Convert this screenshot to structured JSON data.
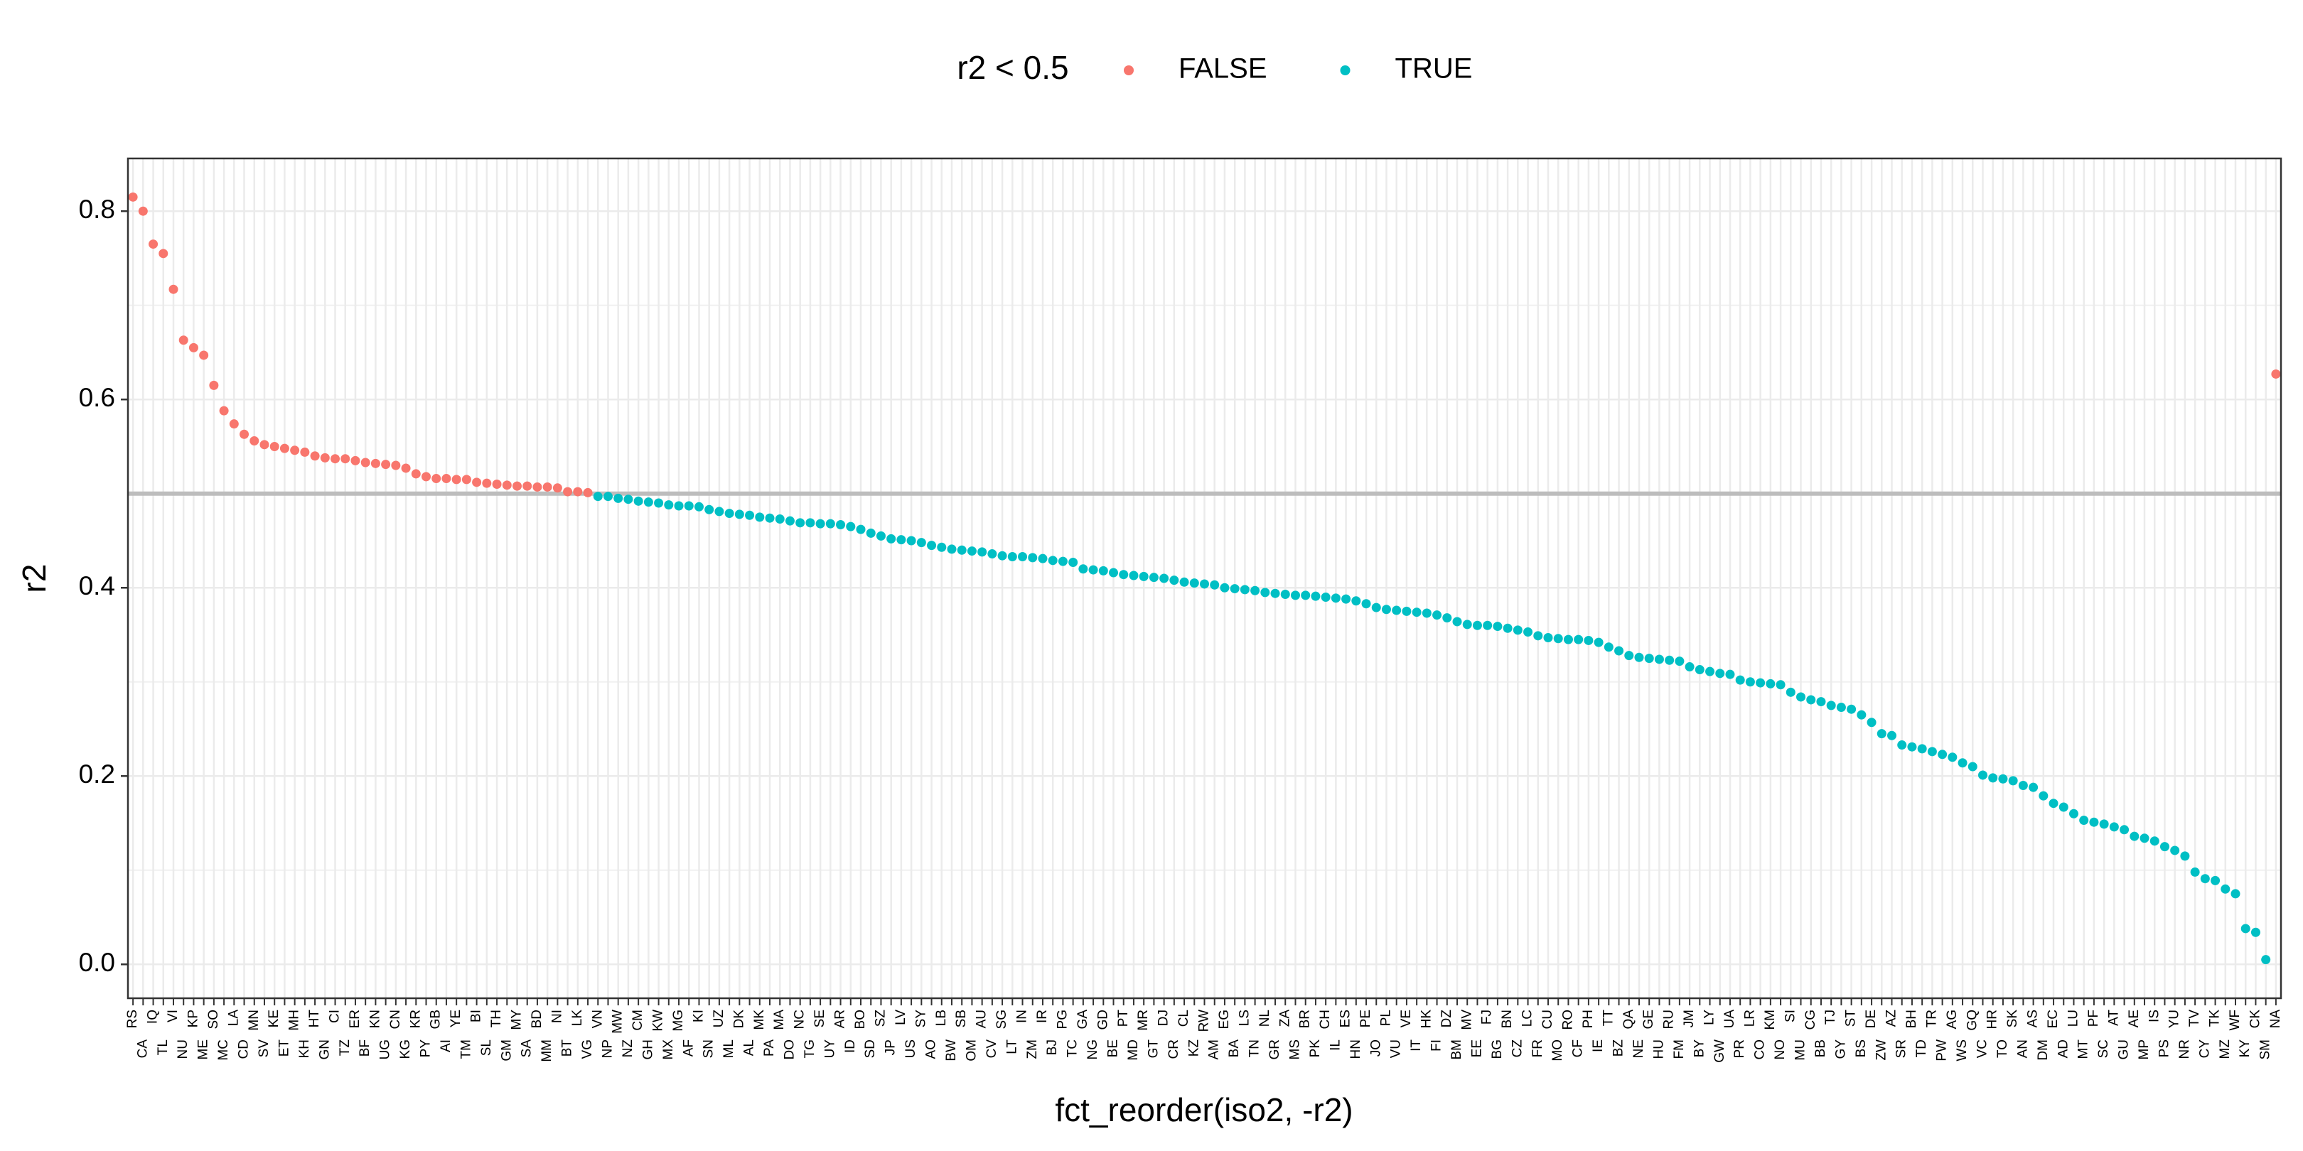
{
  "chart_data": {
    "type": "scatter",
    "x_label": "fct_reorder(iso2, -r2)",
    "y_label": "r2",
    "legend_title": "r2 < 0.5",
    "legend_position": "top",
    "grid": true,
    "reference_line": 0.5,
    "categories": [
      "RS",
      "CA",
      "IQ",
      "TL",
      "VI",
      "NU",
      "KP",
      "ME",
      "SO",
      "MC",
      "LA",
      "CD",
      "MN",
      "SV",
      "KE",
      "ET",
      "MH",
      "KH",
      "HT",
      "GN",
      "CI",
      "TZ",
      "ER",
      "BF",
      "KN",
      "UG",
      "CN",
      "KG",
      "KR",
      "PY",
      "GB",
      "AI",
      "YE",
      "TM",
      "BI",
      "SL",
      "TH",
      "GM",
      "MY",
      "SA",
      "BD",
      "MM",
      "NI",
      "BT",
      "LK",
      "VG",
      "VN",
      "NP",
      "MW",
      "NZ",
      "CM",
      "GH",
      "KW",
      "MX",
      "MG",
      "AF",
      "KI",
      "SN",
      "UZ",
      "ML",
      "DK",
      "AL",
      "MK",
      "PA",
      "MA",
      "DO",
      "NC",
      "TG",
      "SE",
      "UY",
      "AR",
      "ID",
      "BO",
      "SD",
      "SZ",
      "JP",
      "LV",
      "US",
      "SY",
      "AO",
      "LB",
      "BW",
      "SB",
      "OM",
      "AU",
      "CV",
      "SG",
      "LT",
      "IN",
      "ZM",
      "IR",
      "BJ",
      "PG",
      "TC",
      "GA",
      "NG",
      "GD",
      "BE",
      "PT",
      "MD",
      "MR",
      "GT",
      "DJ",
      "CR",
      "CL",
      "KZ",
      "RW",
      "AM",
      "EG",
      "BA",
      "LS",
      "TN",
      "NL",
      "GR",
      "ZA",
      "MS",
      "BR",
      "PK",
      "CH",
      "IL",
      "ES",
      "HN",
      "PE",
      "JO",
      "PL",
      "VU",
      "VE",
      "IT",
      "HK",
      "FI",
      "DZ",
      "BM",
      "MV",
      "EE",
      "FJ",
      "BG",
      "BN",
      "CZ",
      "LC",
      "FR",
      "CU",
      "MO",
      "RO",
      "CF",
      "PH",
      "IE",
      "TT",
      "BZ",
      "QA",
      "NE",
      "GE",
      "HU",
      "RU",
      "FM",
      "JM",
      "BY",
      "LY",
      "GW",
      "UA",
      "PR",
      "LR",
      "CO",
      "KM",
      "NO",
      "SI",
      "MU",
      "CG",
      "BB",
      "TJ",
      "GY",
      "ST",
      "BS",
      "DE",
      "ZW",
      "AZ",
      "SR",
      "BH",
      "TD",
      "TR",
      "PW",
      "AG",
      "WS",
      "GQ",
      "VC",
      "HR",
      "TO",
      "SK",
      "AN",
      "AS",
      "DM",
      "EC",
      "AD",
      "LU",
      "MT",
      "PF",
      "SC",
      "AT",
      "GU",
      "AE",
      "MP",
      "IS",
      "PS",
      "YU",
      "NR",
      "TV",
      "CY",
      "TK",
      "MZ",
      "WF",
      "KY",
      "CK",
      "SM",
      "NA"
    ],
    "series": [
      {
        "name": "FALSE",
        "color": "#F8766D",
        "values": [
          0.815,
          0.8,
          0.765,
          0.755,
          0.717,
          0.663,
          0.655,
          0.647,
          0.615,
          0.588,
          0.574,
          0.563,
          0.556,
          0.552,
          0.55,
          0.548,
          0.546,
          0.544,
          0.54,
          0.538,
          0.537,
          0.537,
          0.535,
          0.533,
          0.532,
          0.531,
          0.53,
          0.527,
          0.521,
          0.518,
          0.516,
          0.516,
          0.515,
          0.515,
          0.512,
          0.511,
          0.51,
          0.509,
          0.508,
          0.508,
          0.507,
          0.507,
          0.506,
          0.502,
          0.502,
          0.501,
          null,
          null,
          null,
          null,
          null,
          null,
          null,
          null,
          null,
          null,
          null,
          null,
          null,
          null,
          null,
          null,
          null,
          null,
          null,
          null,
          null,
          null,
          null,
          null,
          null,
          null,
          null,
          null,
          null,
          null,
          null,
          null,
          null,
          null,
          null,
          null,
          null,
          null,
          null,
          null,
          null,
          null,
          null,
          null,
          null,
          null,
          null,
          null,
          null,
          null,
          null,
          null,
          null,
          null,
          null,
          null,
          null,
          null,
          null,
          null,
          null,
          null,
          null,
          null,
          null,
          null,
          null,
          null,
          null,
          null,
          null,
          null,
          null,
          null,
          null,
          null,
          null,
          null,
          null,
          null,
          null,
          null,
          null,
          null,
          null,
          null,
          null,
          null,
          null,
          null,
          null,
          null,
          null,
          null,
          null,
          null,
          null,
          null,
          null,
          null,
          null,
          null,
          null,
          null,
          null,
          null,
          null,
          null,
          null,
          null,
          null,
          null,
          null,
          null,
          null,
          null,
          null,
          null,
          null,
          null,
          null,
          null,
          null,
          null,
          null,
          null,
          null,
          null,
          null,
          null,
          null,
          null,
          null,
          null,
          null,
          null,
          null,
          null,
          null,
          null,
          null,
          null,
          null,
          null,
          null,
          null,
          null,
          null,
          null,
          null,
          null,
          null,
          null,
          null,
          null,
          null,
          null,
          null,
          null,
          null,
          null,
          null,
          null,
          null,
          null,
          null,
          0.627
        ]
      },
      {
        "name": "TRUE",
        "color": "#00BFC4",
        "values": [
          null,
          null,
          null,
          null,
          null,
          null,
          null,
          null,
          null,
          null,
          null,
          null,
          null,
          null,
          null,
          null,
          null,
          null,
          null,
          null,
          null,
          null,
          null,
          null,
          null,
          null,
          null,
          null,
          null,
          null,
          null,
          null,
          null,
          null,
          null,
          null,
          null,
          null,
          null,
          null,
          null,
          null,
          null,
          null,
          null,
          null,
          0.497,
          0.497,
          0.495,
          0.494,
          0.492,
          0.491,
          0.49,
          0.488,
          0.487,
          0.487,
          0.486,
          0.483,
          0.481,
          0.479,
          0.478,
          0.477,
          0.475,
          0.474,
          0.473,
          0.471,
          0.469,
          0.469,
          0.468,
          0.468,
          0.467,
          0.465,
          0.462,
          0.458,
          0.455,
          0.452,
          0.451,
          0.45,
          0.448,
          0.445,
          0.443,
          0.441,
          0.44,
          0.439,
          0.438,
          0.436,
          0.434,
          0.433,
          0.433,
          0.432,
          0.431,
          0.429,
          0.428,
          0.427,
          0.42,
          0.419,
          0.418,
          0.416,
          0.414,
          0.413,
          0.412,
          0.411,
          0.41,
          0.408,
          0.406,
          0.405,
          0.404,
          0.403,
          0.4,
          0.399,
          0.398,
          0.397,
          0.395,
          0.394,
          0.393,
          0.392,
          0.392,
          0.391,
          0.39,
          0.389,
          0.388,
          0.386,
          0.383,
          0.379,
          0.377,
          0.376,
          0.375,
          0.374,
          0.373,
          0.371,
          0.368,
          0.364,
          0.361,
          0.36,
          0.36,
          0.359,
          0.357,
          0.355,
          0.353,
          0.349,
          0.347,
          0.346,
          0.345,
          0.345,
          0.344,
          0.342,
          0.337,
          0.333,
          0.328,
          0.326,
          0.325,
          0.324,
          0.323,
          0.322,
          0.316,
          0.313,
          0.311,
          0.309,
          0.308,
          0.302,
          0.3,
          0.299,
          0.298,
          0.297,
          0.289,
          0.284,
          0.281,
          0.279,
          0.275,
          0.273,
          0.271,
          0.265,
          0.257,
          0.245,
          0.243,
          0.233,
          0.231,
          0.229,
          0.226,
          0.223,
          0.22,
          0.214,
          0.21,
          0.201,
          0.198,
          0.197,
          0.195,
          0.19,
          0.188,
          0.179,
          0.171,
          0.167,
          0.16,
          0.153,
          0.151,
          0.149,
          0.146,
          0.143,
          0.136,
          0.134,
          0.131,
          0.125,
          0.121,
          0.115,
          0.098,
          0.091,
          0.089,
          0.08,
          0.075,
          0.038,
          0.034,
          0.005,
          null
        ]
      }
    ],
    "ylim": [
      -0.036,
      0.856
    ],
    "yticks": [
      {
        "value": 0,
        "label": "0.0"
      },
      0.2,
      {
        "value": 0.4,
        "label": "0.4"
      },
      {
        "value": 0.6,
        "label": "0.6"
      },
      {
        "value": 0.8,
        "label": "0.8"
      }
    ]
  }
}
